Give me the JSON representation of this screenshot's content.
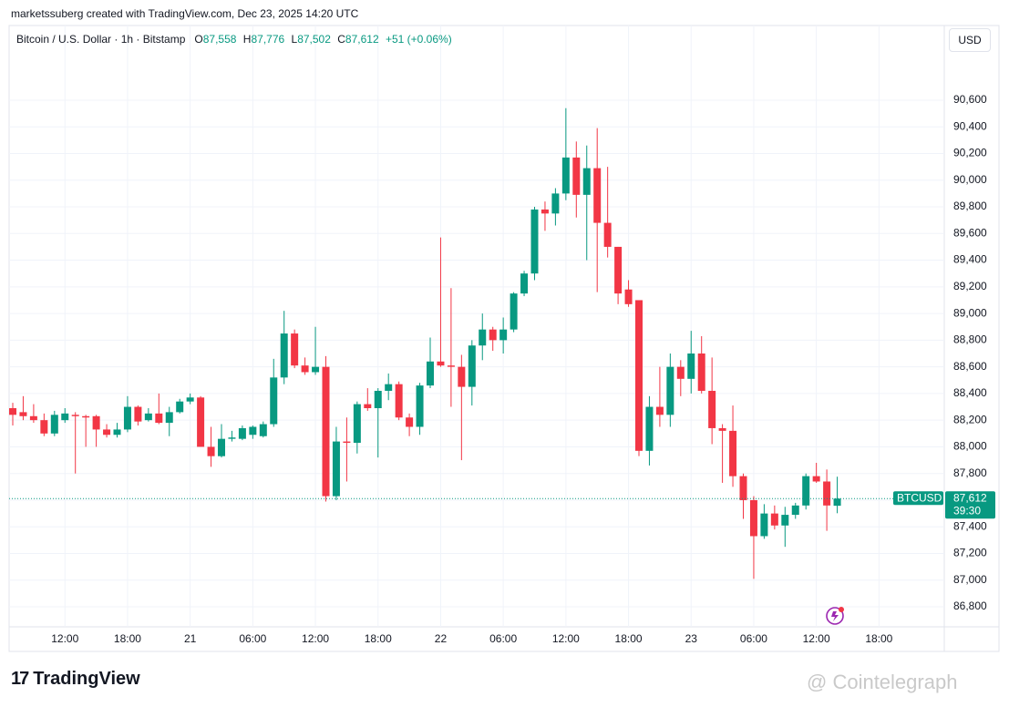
{
  "credit": "marketssuberg created with TradingView.com, Dec 23, 2025 14:20 UTC",
  "legend": {
    "symbol": "Bitcoin / U.S. Dollar · 1h · Bitstamp",
    "o_label": "O",
    "o": "87,558",
    "h_label": "H",
    "h": "87,776",
    "l_label": "L",
    "l": "87,502",
    "c_label": "C",
    "c": "87,612",
    "change": "+51 (+0.06%)"
  },
  "currency_button": "USD",
  "brand": "TradingView",
  "watermark": "@ Cointelegraph",
  "chart_data": {
    "type": "candlestick",
    "categories": [
      null,
      null,
      null,
      null,
      null,
      "12:00",
      null,
      null,
      null,
      null,
      null,
      "18:00",
      null,
      null,
      null,
      null,
      null,
      "21",
      null,
      null,
      null,
      null,
      null,
      "06:00",
      null,
      null,
      null,
      null,
      null,
      "12:00",
      null,
      null,
      null,
      null,
      null,
      "18:00",
      null,
      null,
      null,
      null,
      null,
      "22",
      null,
      null,
      null,
      null,
      null,
      "06:00",
      null,
      null,
      null,
      null,
      null,
      "12:00",
      null,
      null,
      null,
      null,
      null,
      "18:00",
      null,
      null,
      null,
      null,
      null,
      "23",
      null,
      null,
      null,
      null,
      null,
      "06:00",
      null,
      null,
      null,
      null,
      null,
      "12:00",
      null,
      null,
      null,
      null,
      null,
      "18:00"
    ],
    "open": [
      88290,
      88260,
      88230,
      88200,
      88100,
      88200,
      88240,
      88230,
      88230,
      88130,
      88090,
      88130,
      88300,
      88200,
      88250,
      88180,
      88260,
      88340,
      88370,
      88000,
      87930,
      88060,
      88060,
      88090,
      88080,
      88170,
      88520,
      88850,
      88610,
      88560,
      88600,
      87630,
      88040,
      88030,
      88320,
      88290,
      88420,
      88470,
      88220,
      88150,
      88460,
      88640,
      88610,
      88600,
      88450,
      88760,
      88880,
      88800,
      88880,
      89150,
      89300,
      89780,
      89750,
      89900,
      90170,
      89890,
      90090,
      89680,
      89500,
      89180,
      89100,
      87970,
      88300,
      88240,
      88600,
      88510,
      88700,
      88420,
      88140,
      88120,
      87780,
      87600,
      87330,
      87500,
      87410,
      87490,
      87560,
      87780,
      87740,
      87558,
      null,
      null,
      null,
      null
    ],
    "high": [
      88330,
      88380,
      88320,
      88250,
      88270,
      88290,
      88260,
      88240,
      88240,
      88170,
      88180,
      88380,
      88310,
      88290,
      88400,
      88300,
      88360,
      88400,
      88380,
      88150,
      88170,
      88120,
      88160,
      88160,
      88190,
      88660,
      89020,
      88880,
      88670,
      88900,
      88680,
      88150,
      88220,
      88340,
      88440,
      88440,
      88550,
      88490,
      88250,
      88480,
      88820,
      89570,
      89190,
      88690,
      88800,
      89000,
      88900,
      88970,
      89160,
      89320,
      89800,
      89840,
      89940,
      90540,
      90290,
      90260,
      90390,
      90100,
      89500,
      89250,
      89100,
      88380,
      88600,
      88700,
      88650,
      88870,
      88830,
      88670,
      88170,
      88310,
      87800,
      87630,
      87570,
      87560,
      87550,
      87580,
      87800,
      87880,
      87830,
      87776,
      null,
      null,
      null,
      null
    ],
    "low": [
      88160,
      88200,
      88180,
      88080,
      88080,
      88180,
      87800,
      88000,
      88000,
      88070,
      88070,
      88110,
      88160,
      88190,
      88170,
      88080,
      88250,
      88320,
      88000,
      87850,
      87920,
      88040,
      88050,
      88060,
      88070,
      88150,
      88470,
      88590,
      88540,
      88540,
      87590,
      87600,
      87740,
      87950,
      88270,
      87920,
      88350,
      88200,
      88080,
      88090,
      88440,
      88600,
      88300,
      87900,
      88310,
      88650,
      88720,
      88700,
      88860,
      89130,
      89250,
      89620,
      89660,
      89850,
      89720,
      89400,
      89160,
      89420,
      89070,
      89050,
      87930,
      87860,
      88150,
      88150,
      88380,
      88400,
      88400,
      88020,
      87730,
      87700,
      87460,
      87010,
      87310,
      87380,
      87250,
      87460,
      87530,
      87730,
      87370,
      87502,
      null,
      null,
      null,
      null
    ],
    "close": [
      88240,
      88230,
      88200,
      88100,
      88240,
      88250,
      88230,
      88220,
      88130,
      88090,
      88130,
      88300,
      88190,
      88250,
      88180,
      88260,
      88340,
      88370,
      88000,
      87930,
      88060,
      88070,
      88140,
      88150,
      88170,
      88520,
      88850,
      88610,
      88560,
      88600,
      87630,
      88040,
      88030,
      88320,
      88290,
      88420,
      88470,
      88220,
      88150,
      88460,
      88640,
      88610,
      88600,
      88450,
      88760,
      88880,
      88800,
      88880,
      89150,
      89300,
      89780,
      89750,
      89900,
      90170,
      89890,
      90090,
      89680,
      89500,
      89150,
      89070,
      87970,
      88300,
      88240,
      88600,
      88510,
      88700,
      88420,
      88140,
      88120,
      87780,
      87600,
      87330,
      87500,
      87410,
      87490,
      87560,
      87780,
      87740,
      87560,
      87612,
      null,
      null,
      null,
      null
    ],
    "up_color": "#089981",
    "down_color": "#f23645",
    "ylim": [
      86650,
      91160
    ],
    "yticks": [
      {
        "value": 86800,
        "label": "86,800"
      },
      {
        "value": 87000,
        "label": "87,000"
      },
      {
        "value": 87200,
        "label": "87,200"
      },
      {
        "value": 87400,
        "label": "87,400"
      },
      {
        "value": 87600,
        "label": "87,600"
      },
      {
        "value": 87800,
        "label": "87,800"
      },
      {
        "value": 88000,
        "label": "88,000"
      },
      {
        "value": 88200,
        "label": "88,200"
      },
      {
        "value": 88400,
        "label": "88,400"
      },
      {
        "value": 88600,
        "label": "88,600"
      },
      {
        "value": 88800,
        "label": "88,800"
      },
      {
        "value": 89000,
        "label": "89,000"
      },
      {
        "value": 89200,
        "label": "89,200"
      },
      {
        "value": 89400,
        "label": "89,400"
      },
      {
        "value": 89600,
        "label": "89,600"
      },
      {
        "value": 89800,
        "label": "89,800"
      },
      {
        "value": 90000,
        "label": "90,000"
      },
      {
        "value": 90200,
        "label": "90,200"
      },
      {
        "value": 90400,
        "label": "90,400"
      },
      {
        "value": 90600,
        "label": "90,600"
      }
    ],
    "grid": true,
    "last_price": {
      "value": 87612,
      "label": "87,612",
      "symbol": "BTCUSD",
      "countdown": "39:30"
    }
  }
}
